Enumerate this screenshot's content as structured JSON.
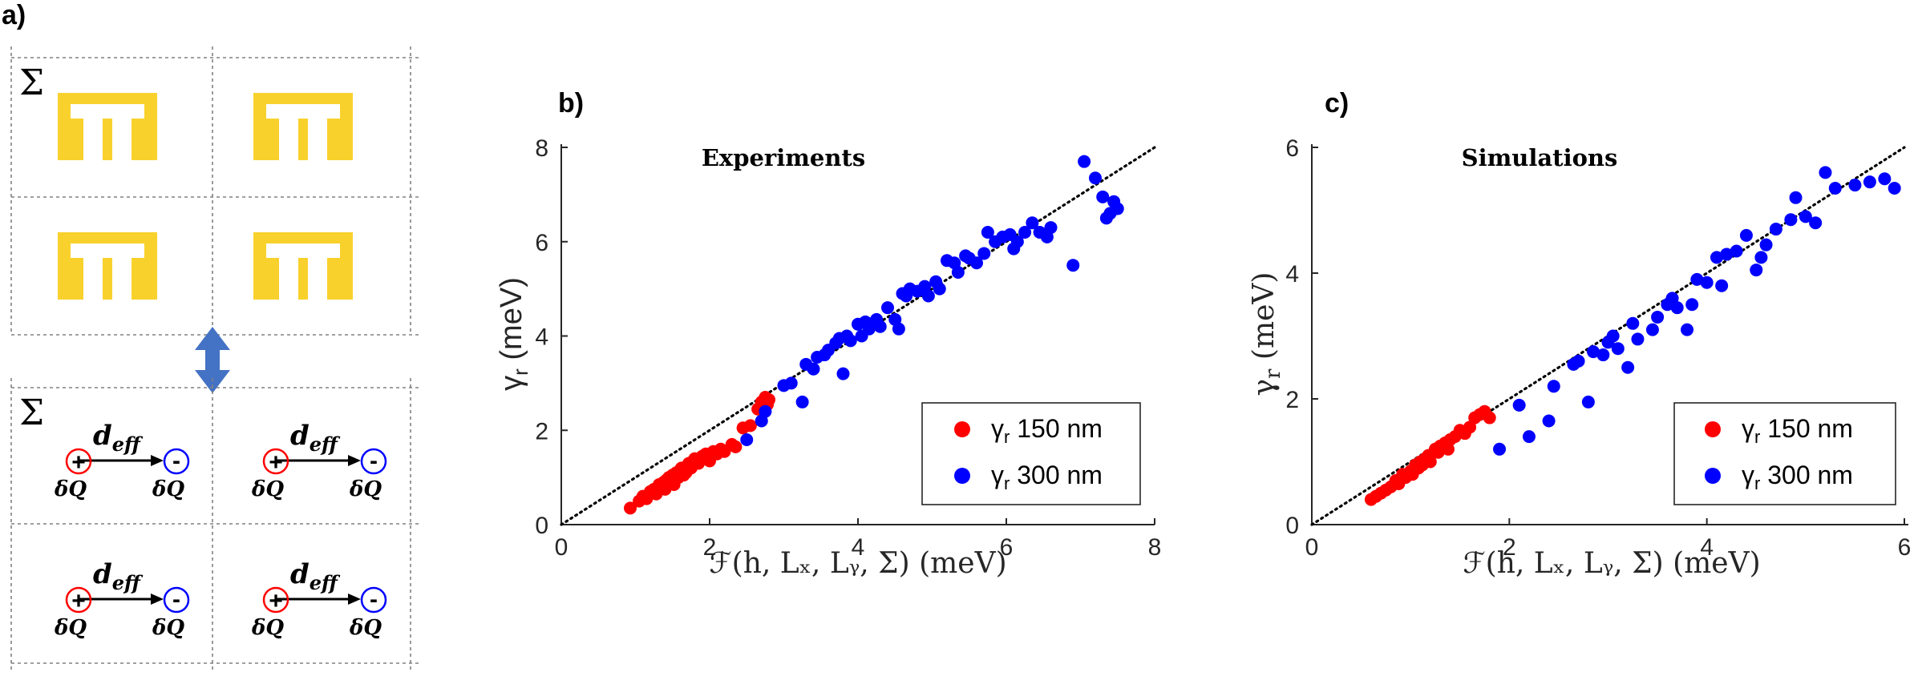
{
  "panel_a": {
    "label": "a)",
    "sum_symbol": "Σ",
    "dipole": {
      "main": "d",
      "sub": "eff",
      "plus_sign": "+",
      "minus_sign": "-",
      "charge_main": "δQ"
    },
    "colors": {
      "split_ring": "#f8d12c",
      "arrow": "#4472c4",
      "plus_circle": "#ff0000",
      "minus_circle": "#0000ff"
    }
  },
  "chart_data": [
    {
      "type": "scatter",
      "panel_label": "b)",
      "title": "Experiments",
      "xlabel": "ℱ(h, Lₓ, Lᵧ, Σ) (meV)",
      "ylabel_main": "γ",
      "ylabel_sub": "r",
      "ylabel_unit": " (meV)",
      "xlim": [
        0,
        8
      ],
      "ylim": [
        0,
        8
      ],
      "xticks": [
        "0",
        "2",
        "4",
        "6",
        "8"
      ],
      "yticks": [
        "0",
        "2",
        "4",
        "6",
        "8"
      ],
      "reference_line": {
        "style": "dotted",
        "from": [
          0,
          0
        ],
        "to": [
          8,
          8
        ]
      },
      "legend_position": "bottom-right",
      "series": [
        {
          "name": "150 nm",
          "legend_main": "γ",
          "legend_sub": "r",
          "legend_rest": " 150 nm",
          "color": "#ff0000",
          "x": [
            0.93,
            1.05,
            1.1,
            1.15,
            1.2,
            1.25,
            1.28,
            1.32,
            1.35,
            1.38,
            1.4,
            1.42,
            1.45,
            1.48,
            1.5,
            1.52,
            1.55,
            1.58,
            1.6,
            1.62,
            1.65,
            1.68,
            1.7,
            1.72,
            1.75,
            1.78,
            1.8,
            1.85,
            1.9,
            1.95,
            2.0,
            2.05,
            2.1,
            2.15,
            2.2,
            2.3,
            2.35,
            2.45,
            2.55,
            2.65,
            2.7,
            2.72,
            2.75,
            2.78,
            2.8
          ],
          "y": [
            0.35,
            0.5,
            0.6,
            0.55,
            0.7,
            0.75,
            0.65,
            0.85,
            0.8,
            0.9,
            0.75,
            0.95,
            1.0,
            0.9,
            1.05,
            0.85,
            1.1,
            1.0,
            1.15,
            1.2,
            1.05,
            1.1,
            1.25,
            1.3,
            1.2,
            1.35,
            1.4,
            1.3,
            1.45,
            1.5,
            1.35,
            1.55,
            1.5,
            1.6,
            1.55,
            1.7,
            1.65,
            2.05,
            2.1,
            2.45,
            2.6,
            2.5,
            2.7,
            2.55,
            2.65
          ]
        },
        {
          "name": "300 nm",
          "legend_main": "γ",
          "legend_sub": "r",
          "legend_rest": " 300 nm",
          "color": "#0000ff",
          "x": [
            2.5,
            2.7,
            2.75,
            3.0,
            3.1,
            3.25,
            3.3,
            3.4,
            3.45,
            3.55,
            3.6,
            3.7,
            3.75,
            3.8,
            3.85,
            3.9,
            4.0,
            4.05,
            4.1,
            4.15,
            4.25,
            4.3,
            4.4,
            4.5,
            4.55,
            4.6,
            4.65,
            4.7,
            4.8,
            4.9,
            4.95,
            5.05,
            5.1,
            5.2,
            5.3,
            5.35,
            5.45,
            5.5,
            5.6,
            5.7,
            5.75,
            5.85,
            5.95,
            6.05,
            6.1,
            6.15,
            6.25,
            6.35,
            6.45,
            6.55,
            6.6,
            6.9,
            7.05,
            7.2,
            7.3,
            7.35,
            7.4,
            7.45,
            7.5
          ],
          "y": [
            1.8,
            2.2,
            2.4,
            2.95,
            3.0,
            2.6,
            3.4,
            3.3,
            3.55,
            3.6,
            3.7,
            3.85,
            3.95,
            3.2,
            4.0,
            3.9,
            4.25,
            4.0,
            4.3,
            4.15,
            4.35,
            4.2,
            4.6,
            4.35,
            4.15,
            4.9,
            4.85,
            5.0,
            4.95,
            5.05,
            4.85,
            5.15,
            5.0,
            5.6,
            5.55,
            5.35,
            5.7,
            5.65,
            5.55,
            5.75,
            6.2,
            6.0,
            6.1,
            6.15,
            5.85,
            6.0,
            6.2,
            6.4,
            6.2,
            6.1,
            6.3,
            5.5,
            7.7,
            7.35,
            6.95,
            6.5,
            6.6,
            6.85,
            6.7
          ]
        }
      ]
    },
    {
      "type": "scatter",
      "panel_label": "c)",
      "title": "Simulations",
      "xlabel": "ℱ(h, Lₓ, Lᵧ, Σ) (meV)",
      "ylabel_main": "γ",
      "ylabel_sub": "r",
      "ylabel_unit": " (meV)",
      "xlim": [
        0,
        6
      ],
      "ylim": [
        0,
        6
      ],
      "xticks": [
        "0",
        "2",
        "4",
        "6"
      ],
      "yticks": [
        "0",
        "2",
        "4",
        "6"
      ],
      "reference_line": {
        "style": "dotted",
        "from": [
          0,
          0
        ],
        "to": [
          6,
          6
        ]
      },
      "legend_position": "bottom-right",
      "series": [
        {
          "name": "150 nm",
          "legend_main": "γ",
          "legend_sub": "r",
          "legend_rest": " 150 nm",
          "color": "#ff0000",
          "x": [
            0.6,
            0.65,
            0.7,
            0.75,
            0.8,
            0.85,
            0.88,
            0.92,
            0.95,
            1.0,
            1.02,
            1.05,
            1.08,
            1.1,
            1.12,
            1.15,
            1.18,
            1.2,
            1.25,
            1.28,
            1.3,
            1.35,
            1.38,
            1.4,
            1.45,
            1.5,
            1.55,
            1.6,
            1.65,
            1.7,
            1.75,
            1.8
          ],
          "y": [
            0.4,
            0.45,
            0.5,
            0.55,
            0.6,
            0.7,
            0.65,
            0.8,
            0.75,
            0.85,
            0.8,
            0.95,
            0.9,
            1.0,
            0.95,
            1.05,
            1.1,
            1.0,
            1.2,
            1.15,
            1.25,
            1.3,
            1.2,
            1.35,
            1.4,
            1.5,
            1.45,
            1.55,
            1.7,
            1.75,
            1.8,
            1.7
          ]
        },
        {
          "name": "300 nm",
          "legend_main": "γ",
          "legend_sub": "r",
          "legend_rest": " 300 nm",
          "color": "#0000ff",
          "x": [
            1.9,
            2.1,
            2.2,
            2.4,
            2.45,
            2.65,
            2.7,
            2.8,
            2.85,
            2.95,
            3.0,
            3.05,
            3.1,
            3.2,
            3.25,
            3.3,
            3.45,
            3.5,
            3.6,
            3.65,
            3.7,
            3.8,
            3.85,
            3.9,
            4.0,
            4.1,
            4.15,
            4.2,
            4.3,
            4.4,
            4.5,
            4.55,
            4.6,
            4.7,
            4.85,
            4.9,
            5.0,
            5.1,
            5.2,
            5.3,
            5.5,
            5.65,
            5.8,
            5.9
          ],
          "y": [
            1.2,
            1.9,
            1.4,
            1.65,
            2.2,
            2.55,
            2.6,
            1.95,
            2.75,
            2.7,
            2.9,
            3.0,
            2.8,
            2.5,
            3.2,
            2.95,
            3.1,
            3.3,
            3.5,
            3.6,
            3.45,
            3.1,
            3.5,
            3.9,
            3.85,
            4.25,
            3.8,
            4.3,
            4.35,
            4.6,
            4.05,
            4.25,
            4.45,
            4.7,
            4.85,
            5.2,
            4.9,
            4.8,
            5.6,
            5.35,
            5.4,
            5.45,
            5.5,
            5.35
          ]
        }
      ]
    }
  ]
}
